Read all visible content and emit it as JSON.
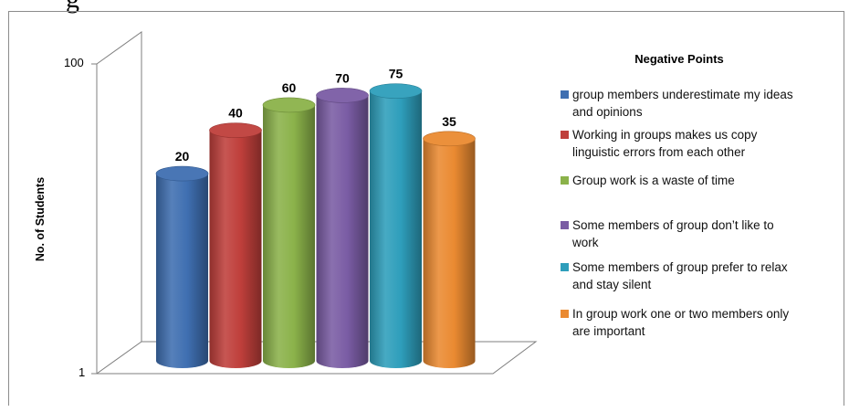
{
  "page": {
    "top_text": "g"
  },
  "chart_data": {
    "type": "bar",
    "style": "3d-cylinder",
    "scale": "log",
    "title": "",
    "ylabel": "No. of Students",
    "xlabel": "",
    "ylim": [
      1,
      100
    ],
    "yticks": [
      "1",
      "100"
    ],
    "legend": {
      "title": "Negative Points",
      "position": "right"
    },
    "categories": [
      "group members underestimate my ideas and opinions",
      "Working in groups makes us copy linguistic errors from each other",
      "Group work is a waste of time",
      "Some members of group don’t like to work",
      "Some members of group prefer to relax and stay silent",
      "In group work one or two members only are important"
    ],
    "values": [
      20,
      40,
      60,
      70,
      75,
      35
    ],
    "colors": [
      "#3f6fb1",
      "#bf3f3b",
      "#8bb24a",
      "#7a5ca4",
      "#2e9ebb",
      "#ea8a31"
    ],
    "legend_entries": [
      {
        "lines": [
          "group members underestimate my ideas",
          "and opinions"
        ]
      },
      {
        "lines": [
          "Working in groups makes us copy",
          "linguistic errors from each other"
        ]
      },
      {
        "lines": [
          "Group work is a waste of time"
        ]
      },
      {
        "lines": [
          "Some members of group don’t like to",
          "work"
        ]
      },
      {
        "lines": [
          "Some members of group prefer to relax",
          "and stay silent"
        ]
      },
      {
        "lines": [
          "In group work one or two members only",
          "are important"
        ]
      }
    ]
  }
}
